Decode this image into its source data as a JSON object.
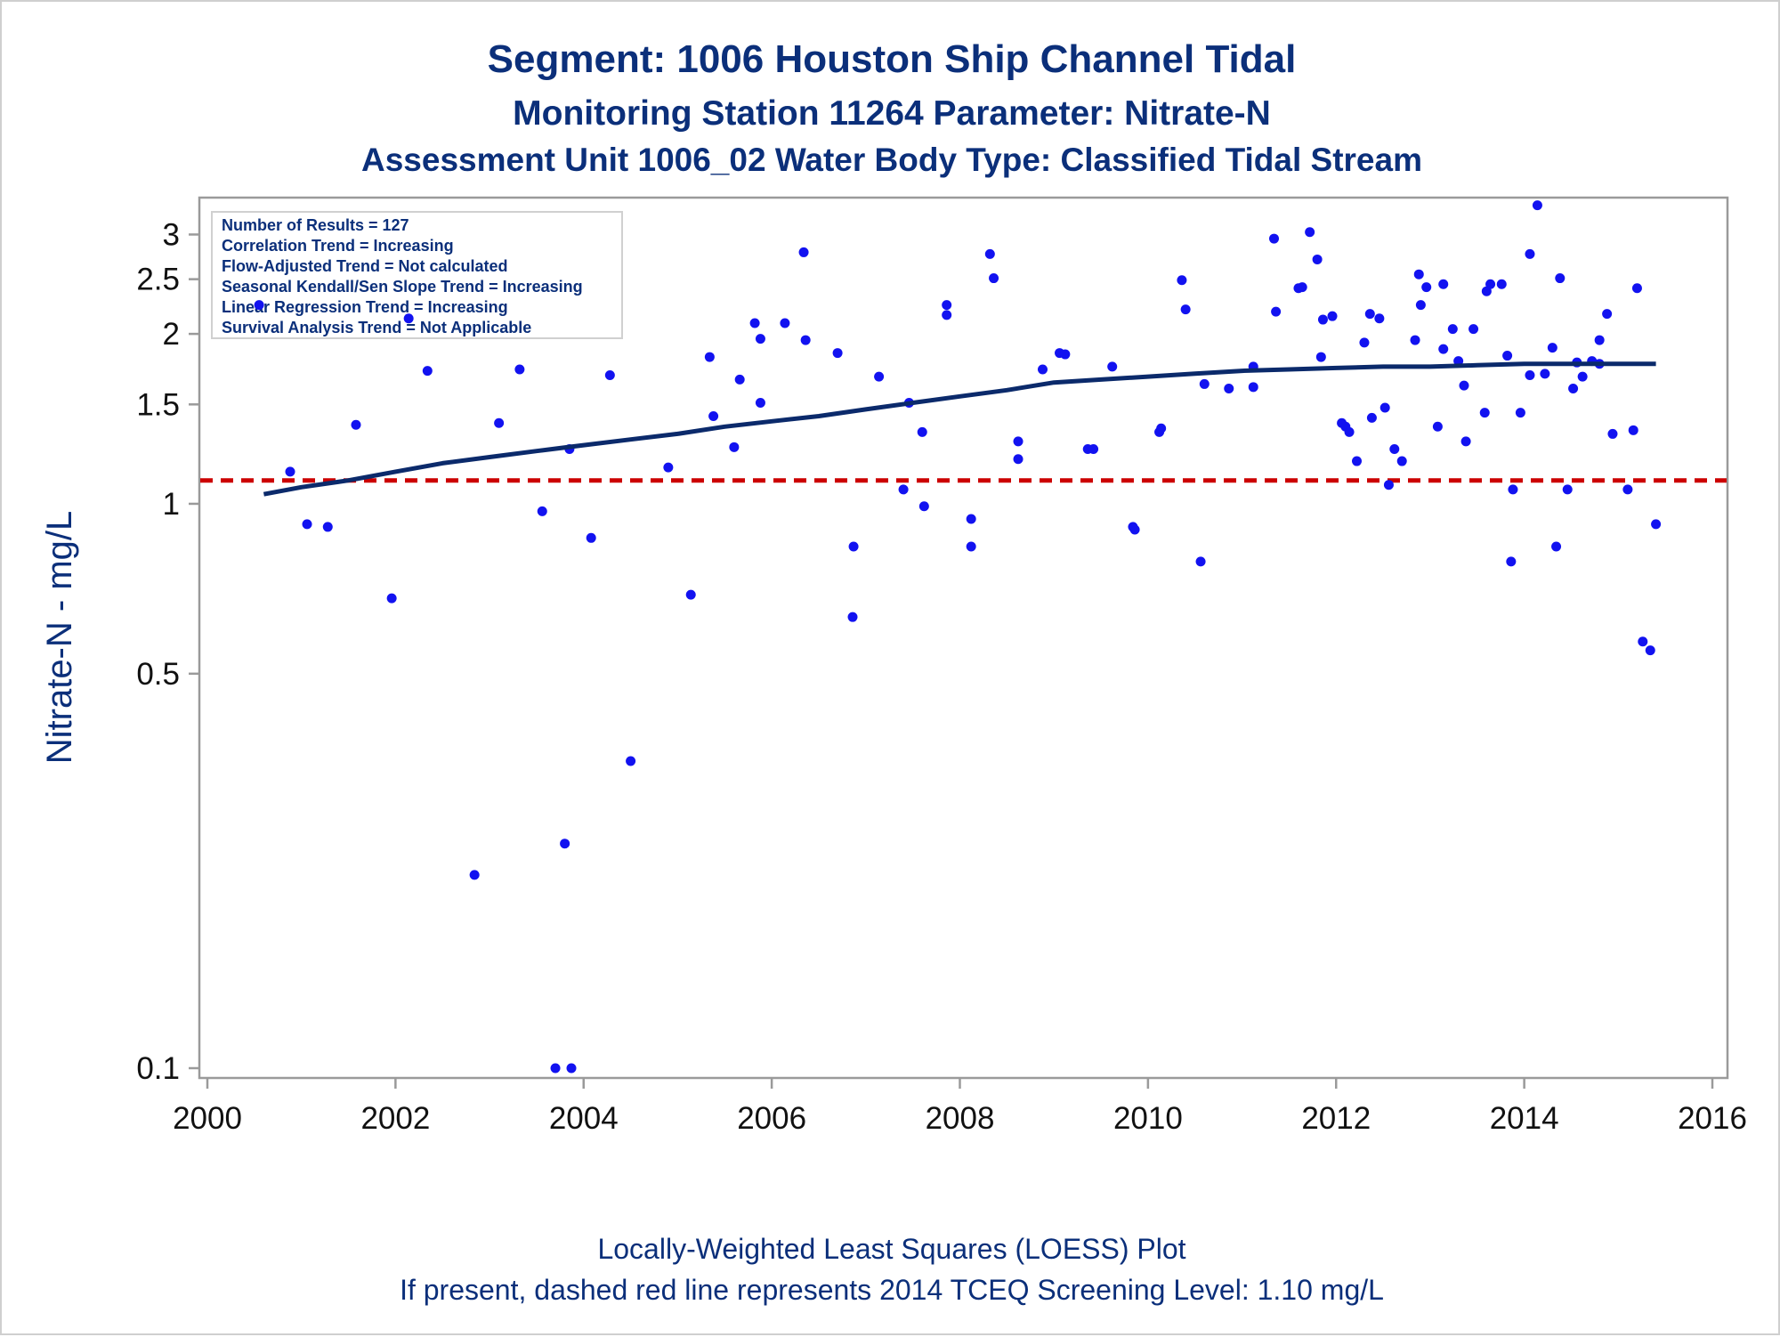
{
  "titles": {
    "line1": "Segment: 1006  Houston Ship Channel Tidal",
    "line2": "Monitoring Station 11264 Parameter: Nitrate-N",
    "line3": "Assessment Unit 1006_02   Water Body Type: Classified Tidal Stream"
  },
  "footnotes": {
    "line1": "Locally-Weighted Least Squares (LOESS) Plot",
    "line2": "If present, dashed red line represents 2014 TCEQ Screening Level: 1.10 mg/L"
  },
  "stats_box": [
    "Number of Results = 127",
    "Correlation Trend = Increasing",
    "Flow-Adjusted Trend = Not calculated",
    "Seasonal Kendall/Sen Slope Trend = Increasing",
    "Linear Regression Trend = Increasing",
    "Survival Analysis Trend = Not Applicable"
  ],
  "colors": {
    "points": "#1212f0",
    "loess": "#0b2a6b",
    "screening": "#cc0000",
    "text": "#0b2f7a",
    "axis": "#9a9a9a"
  },
  "chart_data": {
    "type": "scatter",
    "title": "Segment: 1006  Houston Ship Channel Tidal",
    "xlabel": "",
    "ylabel": "Nitrate-N - mg/L",
    "y_scale": "log",
    "xlim": [
      2000,
      2016
    ],
    "ylim": [
      0.1,
      3.5
    ],
    "x_ticks": [
      2000,
      2002,
      2004,
      2006,
      2008,
      2010,
      2012,
      2014,
      2016
    ],
    "x_tick_labels": [
      "2000",
      "2002",
      "2004",
      "2006",
      "2008",
      "2010",
      "2012",
      "2014",
      "2016"
    ],
    "y_ticks": [
      0.1,
      0.5,
      1,
      1.5,
      2,
      2.5,
      3
    ],
    "y_tick_labels": [
      "0.1",
      "0.5",
      "1",
      "1.5",
      "2",
      "2.5",
      "3"
    ],
    "grid": false,
    "legend_placement": "top-left",
    "screening_level": 1.1,
    "points": [
      [
        2000.55,
        2.25
      ],
      [
        2000.88,
        1.14
      ],
      [
        2001.06,
        0.92
      ],
      [
        2001.28,
        0.91
      ],
      [
        2001.58,
        1.38
      ],
      [
        2001.96,
        0.68
      ],
      [
        2002.14,
        2.13
      ],
      [
        2002.34,
        1.72
      ],
      [
        2002.84,
        0.22
      ],
      [
        2003.1,
        1.39
      ],
      [
        2003.32,
        1.73
      ],
      [
        2003.56,
        0.97
      ],
      [
        2003.7,
        0.1
      ],
      [
        2003.8,
        0.25
      ],
      [
        2003.85,
        1.25
      ],
      [
        2003.87,
        0.1
      ],
      [
        2004.08,
        0.87
      ],
      [
        2004.28,
        1.69
      ],
      [
        2004.5,
        0.35
      ],
      [
        2004.9,
        1.16
      ],
      [
        2005.14,
        0.69
      ],
      [
        2005.34,
        1.82
      ],
      [
        2005.38,
        1.43
      ],
      [
        2005.6,
        1.26
      ],
      [
        2005.66,
        1.66
      ],
      [
        2005.88,
        1.51
      ],
      [
        2005.82,
        2.09
      ],
      [
        2005.88,
        1.96
      ],
      [
        2006.14,
        2.09
      ],
      [
        2006.34,
        2.79
      ],
      [
        2006.36,
        1.95
      ],
      [
        2006.7,
        1.85
      ],
      [
        2006.86,
        0.63
      ],
      [
        2006.87,
        0.84
      ],
      [
        2007.14,
        1.68
      ],
      [
        2007.4,
        1.06
      ],
      [
        2007.46,
        1.51
      ],
      [
        2007.6,
        1.34
      ],
      [
        2007.62,
        0.99
      ],
      [
        2007.86,
        2.25
      ],
      [
        2007.86,
        2.16
      ],
      [
        2008.12,
        0.94
      ],
      [
        2008.12,
        0.84
      ],
      [
        2008.32,
        2.77
      ],
      [
        2008.36,
        2.51
      ],
      [
        2008.62,
        1.29
      ],
      [
        2008.62,
        1.2
      ],
      [
        2008.88,
        1.73
      ],
      [
        2009.06,
        1.85
      ],
      [
        2009.12,
        1.84
      ],
      [
        2009.36,
        1.25
      ],
      [
        2009.42,
        1.25
      ],
      [
        2009.62,
        1.75
      ],
      [
        2009.84,
        0.91
      ],
      [
        2009.86,
        0.9
      ],
      [
        2010.12,
        1.34
      ],
      [
        2010.14,
        1.36
      ],
      [
        2010.36,
        2.49
      ],
      [
        2010.4,
        2.21
      ],
      [
        2010.56,
        0.79
      ],
      [
        2010.6,
        1.63
      ],
      [
        2010.86,
        1.6
      ],
      [
        2011.12,
        1.61
      ],
      [
        2011.12,
        1.75
      ],
      [
        2011.34,
        2.95
      ],
      [
        2011.36,
        2.19
      ],
      [
        2011.6,
        2.41
      ],
      [
        2011.64,
        2.42
      ],
      [
        2011.72,
        3.03
      ],
      [
        2011.8,
        2.71
      ],
      [
        2011.84,
        1.82
      ],
      [
        2011.86,
        2.12
      ],
      [
        2011.96,
        2.15
      ],
      [
        2012.06,
        1.39
      ],
      [
        2012.1,
        1.37
      ],
      [
        2012.14,
        1.34
      ],
      [
        2012.22,
        1.19
      ],
      [
        2012.3,
        1.93
      ],
      [
        2012.36,
        2.17
      ],
      [
        2012.38,
        1.42
      ],
      [
        2012.46,
        2.13
      ],
      [
        2012.52,
        1.48
      ],
      [
        2012.56,
        1.08
      ],
      [
        2012.62,
        1.25
      ],
      [
        2012.7,
        1.19
      ],
      [
        2012.84,
        1.95
      ],
      [
        2012.88,
        2.55
      ],
      [
        2012.9,
        2.25
      ],
      [
        2012.96,
        2.42
      ],
      [
        2013.08,
        1.37
      ],
      [
        2013.14,
        2.45
      ],
      [
        2013.14,
        1.88
      ],
      [
        2013.24,
        2.04
      ],
      [
        2013.3,
        1.79
      ],
      [
        2013.36,
        1.62
      ],
      [
        2013.38,
        1.29
      ],
      [
        2013.46,
        2.04
      ],
      [
        2013.58,
        1.45
      ],
      [
        2013.6,
        2.38
      ],
      [
        2013.64,
        2.45
      ],
      [
        2013.76,
        2.45
      ],
      [
        2013.82,
        1.83
      ],
      [
        2013.86,
        0.79
      ],
      [
        2013.88,
        1.06
      ],
      [
        2013.96,
        1.45
      ],
      [
        2014.06,
        1.69
      ],
      [
        2014.06,
        2.77
      ],
      [
        2014.14,
        3.38
      ],
      [
        2014.22,
        1.7
      ],
      [
        2014.3,
        1.89
      ],
      [
        2014.34,
        0.84
      ],
      [
        2014.38,
        2.51
      ],
      [
        2014.46,
        1.06
      ],
      [
        2014.52,
        1.6
      ],
      [
        2014.56,
        1.78
      ],
      [
        2014.62,
        1.68
      ],
      [
        2014.72,
        1.79
      ],
      [
        2014.8,
        1.77
      ],
      [
        2014.8,
        1.95
      ],
      [
        2014.88,
        2.17
      ],
      [
        2014.94,
        1.33
      ],
      [
        2015.1,
        1.06
      ],
      [
        2015.16,
        1.35
      ],
      [
        2015.2,
        2.41
      ],
      [
        2015.26,
        0.57
      ],
      [
        2015.34,
        0.55
      ],
      [
        2015.4,
        0.92
      ]
    ],
    "loess_line": [
      [
        2000.6,
        1.04
      ],
      [
        2001.0,
        1.07
      ],
      [
        2001.5,
        1.1
      ],
      [
        2002.0,
        1.14
      ],
      [
        2002.5,
        1.18
      ],
      [
        2003.0,
        1.21
      ],
      [
        2003.5,
        1.24
      ],
      [
        2004.0,
        1.27
      ],
      [
        2004.5,
        1.3
      ],
      [
        2005.0,
        1.33
      ],
      [
        2005.5,
        1.37
      ],
      [
        2006.0,
        1.4
      ],
      [
        2006.5,
        1.43
      ],
      [
        2007.0,
        1.47
      ],
      [
        2007.5,
        1.51
      ],
      [
        2008.0,
        1.55
      ],
      [
        2008.5,
        1.59
      ],
      [
        2009.0,
        1.64
      ],
      [
        2009.5,
        1.66
      ],
      [
        2010.0,
        1.68
      ],
      [
        2010.5,
        1.7
      ],
      [
        2011.0,
        1.72
      ],
      [
        2011.5,
        1.73
      ],
      [
        2012.0,
        1.74
      ],
      [
        2012.5,
        1.75
      ],
      [
        2013.0,
        1.75
      ],
      [
        2013.5,
        1.76
      ],
      [
        2014.0,
        1.77
      ],
      [
        2014.5,
        1.77
      ],
      [
        2015.0,
        1.77
      ],
      [
        2015.4,
        1.77
      ]
    ]
  }
}
